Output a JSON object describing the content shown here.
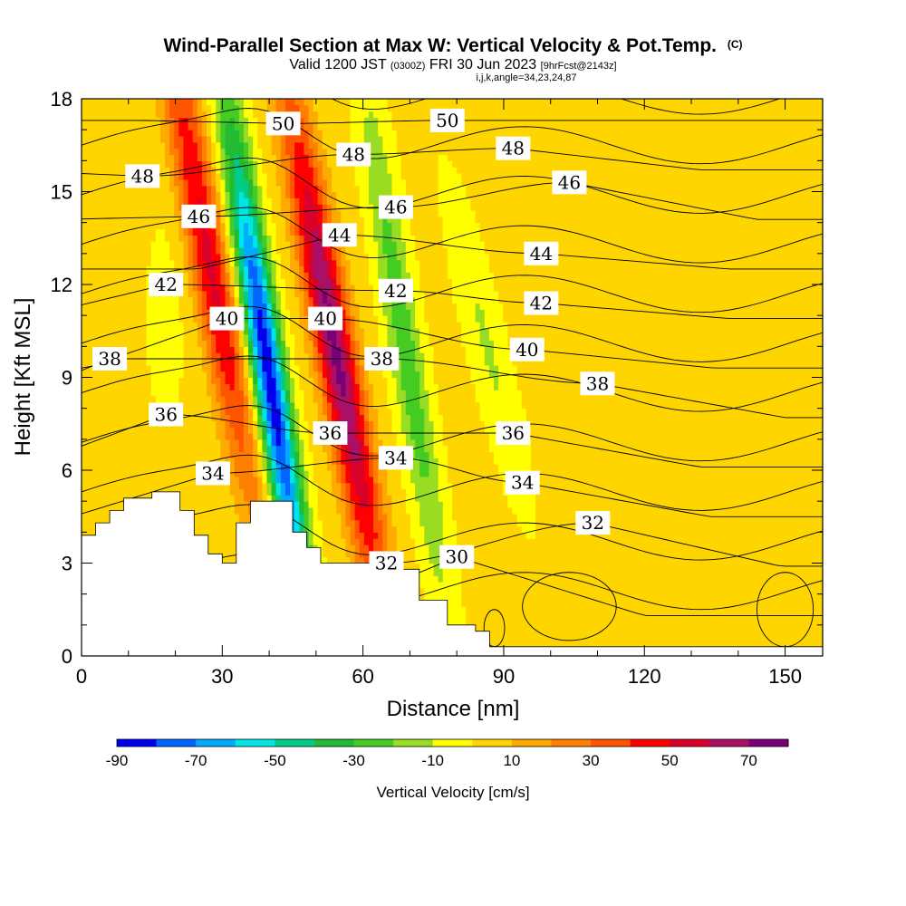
{
  "title": {
    "main": "Wind-Parallel Section at Max W: Vertical Velocity & Pot.Temp.",
    "copyright": "(C)",
    "valid_prefix": "Valid 1200 JST",
    "valid_utc": "(0300Z)",
    "valid_date": "FRI 30 Jun 2023",
    "forecast": "[9hrFcst@2143z]",
    "params": "i,j,k,angle=34,23,24,87"
  },
  "chart_data": {
    "type": "heatmap",
    "xlabel": "Distance [nm]",
    "ylabel": "Height [Kft MSL]",
    "xlim": [
      0,
      158
    ],
    "ylim": [
      0,
      18
    ],
    "x_ticks": [
      "0",
      "30",
      "60",
      "90",
      "120",
      "150"
    ],
    "x_tick_values": [
      0,
      30,
      60,
      90,
      120,
      150
    ],
    "y_ticks": [
      "0",
      "3",
      "6",
      "9",
      "12",
      "15",
      "18"
    ],
    "y_tick_values": [
      0,
      3,
      6,
      9,
      12,
      15,
      18
    ],
    "colorbar": {
      "label": "Vertical Velocity [cm/s]",
      "tick_labels": [
        "-90",
        "-70",
        "-50",
        "-30",
        "-10",
        "10",
        "30",
        "50",
        "70"
      ],
      "tick_values": [
        -90,
        -70,
        -50,
        -30,
        -10,
        10,
        30,
        50,
        70
      ],
      "range": [
        -90,
        80
      ],
      "colors": [
        "#0000ee",
        "#0066ff",
        "#00aaff",
        "#00e6e6",
        "#00cc88",
        "#22bb33",
        "#44cc22",
        "#99dd22",
        "#ffff00",
        "#ffd500",
        "#ffaa00",
        "#ff8000",
        "#ff5500",
        "#ff0000",
        "#d9002a",
        "#aa1166",
        "#7a0077"
      ]
    },
    "vertical_velocity_features": [
      {
        "kind": "updraft",
        "x": 27,
        "y": 13,
        "peak": 50
      },
      {
        "kind": "downdraft",
        "x": 40,
        "y": 9,
        "peak": -90
      },
      {
        "kind": "updraft",
        "x": 54,
        "y": 10,
        "peak": 70
      },
      {
        "kind": "downdraft",
        "x": 69,
        "y": 10,
        "peak": -30
      }
    ],
    "terrain_profile": {
      "x": [
        0,
        3,
        6,
        9,
        15,
        21,
        24,
        27,
        30,
        33,
        36,
        42,
        45,
        48,
        51,
        57,
        63,
        66,
        72,
        78,
        84,
        87,
        90,
        158
      ],
      "y": [
        3.9,
        4.3,
        4.7,
        5.1,
        5.3,
        4.7,
        3.9,
        3.3,
        3.0,
        4.3,
        5.0,
        5.0,
        4.0,
        3.5,
        3.0,
        3.0,
        3.3,
        2.8,
        1.8,
        1.0,
        0.8,
        0.3,
        0.3,
        0.3
      ]
    },
    "potential_temperature_labels": [
      {
        "text": "50",
        "x": 43,
        "y": 17.2
      },
      {
        "text": "50",
        "x": 78,
        "y": 17.3
      },
      {
        "text": "48",
        "x": 13,
        "y": 15.5
      },
      {
        "text": "48",
        "x": 58,
        "y": 16.2
      },
      {
        "text": "48",
        "x": 92,
        "y": 16.4
      },
      {
        "text": "46",
        "x": 25,
        "y": 14.2
      },
      {
        "text": "46",
        "x": 67,
        "y": 14.5
      },
      {
        "text": "46",
        "x": 104,
        "y": 15.3
      },
      {
        "text": "44",
        "x": 55,
        "y": 13.6
      },
      {
        "text": "44",
        "x": 98,
        "y": 13.0
      },
      {
        "text": "42",
        "x": 18,
        "y": 12.0
      },
      {
        "text": "42",
        "x": 67,
        "y": 11.8
      },
      {
        "text": "42",
        "x": 98,
        "y": 11.4
      },
      {
        "text": "40",
        "x": 31,
        "y": 10.9
      },
      {
        "text": "40",
        "x": 52,
        "y": 10.9
      },
      {
        "text": "40",
        "x": 95,
        "y": 9.9
      },
      {
        "text": "38",
        "x": 6,
        "y": 9.6
      },
      {
        "text": "38",
        "x": 64,
        "y": 9.6
      },
      {
        "text": "38",
        "x": 110,
        "y": 8.8
      },
      {
        "text": "36",
        "x": 18,
        "y": 7.8
      },
      {
        "text": "36",
        "x": 53,
        "y": 7.2
      },
      {
        "text": "36",
        "x": 92,
        "y": 7.2
      },
      {
        "text": "34",
        "x": 28,
        "y": 5.9
      },
      {
        "text": "34",
        "x": 67,
        "y": 6.4
      },
      {
        "text": "34",
        "x": 94,
        "y": 5.6
      },
      {
        "text": "32",
        "x": 109,
        "y": 4.3
      },
      {
        "text": "32",
        "x": 65,
        "y": 3.0
      },
      {
        "text": "30",
        "x": 80,
        "y": 3.2
      }
    ]
  }
}
